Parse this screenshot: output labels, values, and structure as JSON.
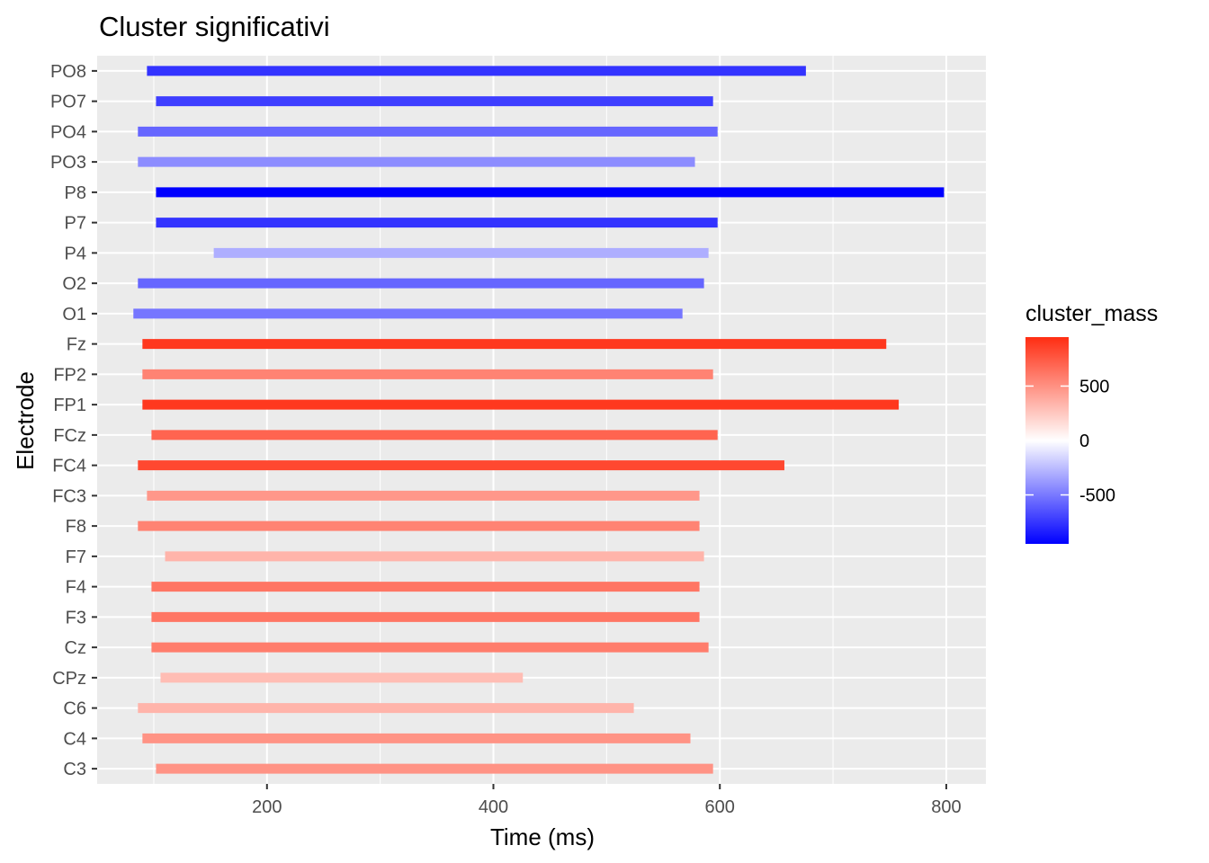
{
  "chart_data": {
    "type": "bar",
    "orientation": "horizontal-range",
    "title": "Cluster significativi",
    "xlabel": "Time (ms)",
    "ylabel": "Electrode",
    "xlim": [
      50,
      835
    ],
    "xticks": [
      200,
      400,
      600,
      800
    ],
    "xtick_labels": [
      "200",
      "400",
      "600",
      "800"
    ],
    "grid": true,
    "legend": {
      "title": "cluster_mass",
      "type": "colorbar",
      "placement": "right",
      "range": [
        -950,
        950
      ],
      "ticks": [
        500,
        0,
        -500
      ],
      "tick_labels": [
        "500",
        "0",
        "-500"
      ],
      "low_color": "#0000FF",
      "mid_color": "#FFFFFF",
      "high_color": "#FF2D12"
    },
    "categories": [
      "PO8",
      "PO7",
      "PO4",
      "PO3",
      "P8",
      "P7",
      "P4",
      "O2",
      "O1",
      "Fz",
      "FP2",
      "FP1",
      "FCz",
      "FC4",
      "FC3",
      "F8",
      "F7",
      "F4",
      "F3",
      "Cz",
      "CPz",
      "C6",
      "C4",
      "C3"
    ],
    "series": [
      {
        "label": "PO8",
        "start": 94,
        "end": 676,
        "cluster_mass": -760
      },
      {
        "label": "PO7",
        "start": 102,
        "end": 594,
        "cluster_mass": -720
      },
      {
        "label": "PO4",
        "start": 86,
        "end": 598,
        "cluster_mass": -570
      },
      {
        "label": "PO3",
        "start": 86,
        "end": 578,
        "cluster_mass": -430
      },
      {
        "label": "P8",
        "start": 102,
        "end": 798,
        "cluster_mass": -950
      },
      {
        "label": "P7",
        "start": 102,
        "end": 598,
        "cluster_mass": -760
      },
      {
        "label": "P4",
        "start": 153,
        "end": 590,
        "cluster_mass": -300
      },
      {
        "label": "O2",
        "start": 86,
        "end": 586,
        "cluster_mass": -570
      },
      {
        "label": "O1",
        "start": 82,
        "end": 567,
        "cluster_mass": -510
      },
      {
        "label": "Fz",
        "start": 90,
        "end": 747,
        "cluster_mass": 900
      },
      {
        "label": "FP2",
        "start": 90,
        "end": 594,
        "cluster_mass": 560
      },
      {
        "label": "FP1",
        "start": 90,
        "end": 758,
        "cluster_mass": 900
      },
      {
        "label": "FCz",
        "start": 98,
        "end": 598,
        "cluster_mass": 700
      },
      {
        "label": "FC4",
        "start": 86,
        "end": 657,
        "cluster_mass": 830
      },
      {
        "label": "FC3",
        "start": 94,
        "end": 582,
        "cluster_mass": 470
      },
      {
        "label": "F8",
        "start": 86,
        "end": 582,
        "cluster_mass": 560
      },
      {
        "label": "F7",
        "start": 110,
        "end": 586,
        "cluster_mass": 340
      },
      {
        "label": "F4",
        "start": 98,
        "end": 582,
        "cluster_mass": 620
      },
      {
        "label": "F3",
        "start": 98,
        "end": 582,
        "cluster_mass": 620
      },
      {
        "label": "Cz",
        "start": 98,
        "end": 590,
        "cluster_mass": 590
      },
      {
        "label": "CPz",
        "start": 106,
        "end": 426,
        "cluster_mass": 300
      },
      {
        "label": "C6",
        "start": 86,
        "end": 524,
        "cluster_mass": 340
      },
      {
        "label": "C4",
        "start": 90,
        "end": 574,
        "cluster_mass": 490
      },
      {
        "label": "C3",
        "start": 102,
        "end": 594,
        "cluster_mass": 490
      }
    ]
  }
}
